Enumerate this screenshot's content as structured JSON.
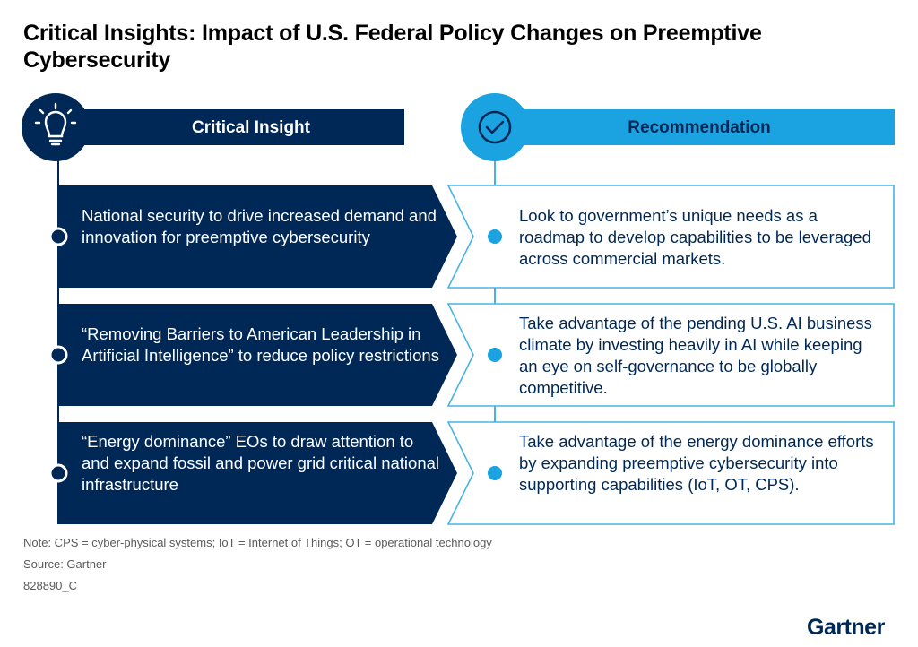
{
  "title": "Critical Insights: Impact of U.S. Federal Policy Changes on Preemptive Cybersecurity",
  "headers": {
    "insight": "Critical Insight",
    "recommendation": "Recommendation"
  },
  "rows": [
    {
      "insight": "National security to drive increased demand and innovation for preemptive cybersecurity",
      "recommendation": "Look to government’s unique needs as a roadmap to develop capabilities to be leveraged across commercial markets."
    },
    {
      "insight": "“Removing Barriers to American Leadership in Artificial Intelligence” to reduce policy restrictions",
      "recommendation": "Take advantage of the pending U.S. AI business climate by investing heavily in AI while keeping an eye on self-governance to be globally competitive."
    },
    {
      "insight": "“Energy dominance” EOs to draw attention to and expand fossil and power grid critical national infrastructure",
      "recommendation": "Take advantage of the energy dominance efforts by expanding preemptive cybersecurity into supporting capabilities (IoT, OT, CPS)."
    }
  ],
  "footer": {
    "note": "Note: CPS = cyber-physical systems; IoT = Internet of Things; OT = operational technology",
    "source": "Source: Gartner",
    "id": "828890_C"
  },
  "logo": "Gartner",
  "icons": {
    "insight": "lightbulb-icon",
    "recommendation": "checkmark-circle-icon"
  },
  "colors": {
    "navy": "#002856",
    "cyan": "#1aa3e0",
    "outline": "#46b4e3"
  }
}
